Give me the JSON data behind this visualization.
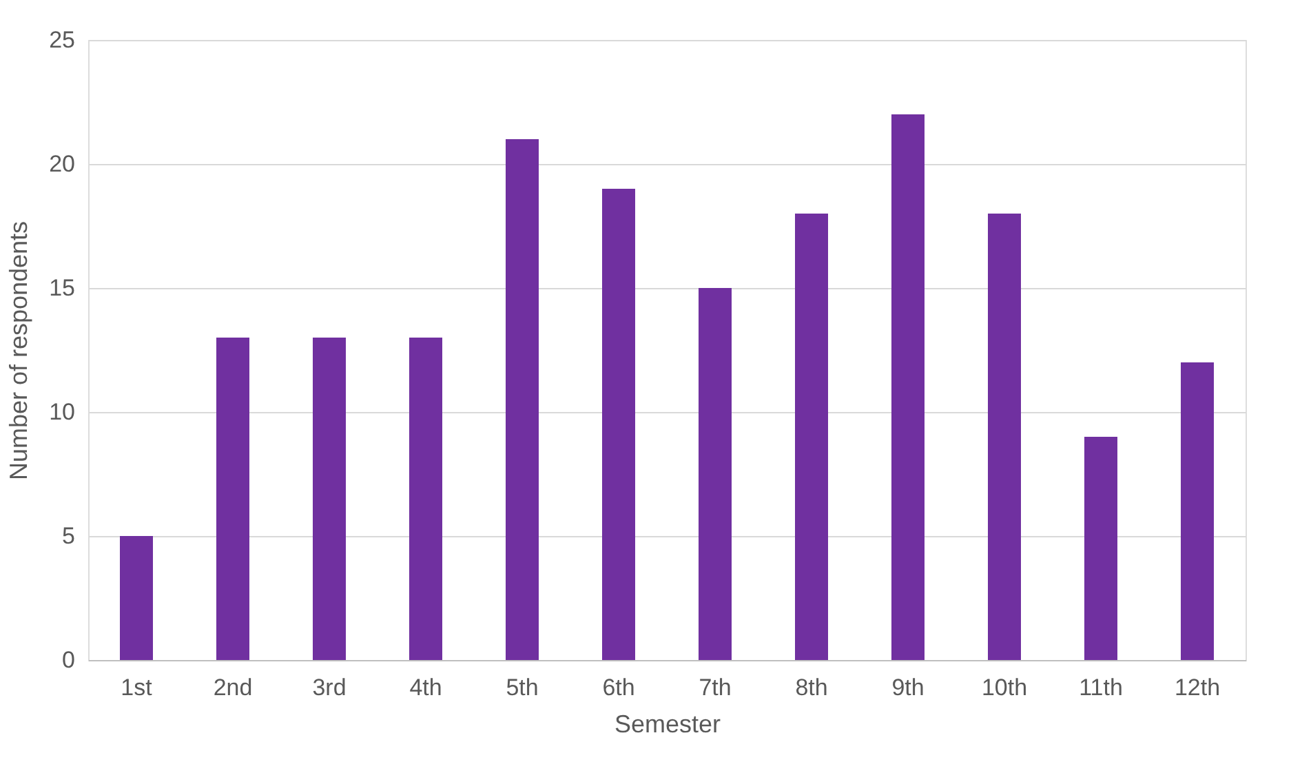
{
  "chart_data": {
    "type": "bar",
    "xlabel": "Semester",
    "ylabel": "Number of respondents",
    "categories": [
      "1st",
      "2nd",
      "3rd",
      "4th",
      "5th",
      "6th",
      "7th",
      "8th",
      "9th",
      "10th",
      "11th",
      "12th"
    ],
    "values": [
      5,
      13,
      13,
      13,
      21,
      19,
      15,
      18,
      22,
      18,
      9,
      12
    ],
    "color": "#7030a0",
    "ylim": [
      0,
      25
    ],
    "yticks": [
      0,
      5,
      10,
      15,
      20,
      25
    ],
    "grid": "y"
  }
}
